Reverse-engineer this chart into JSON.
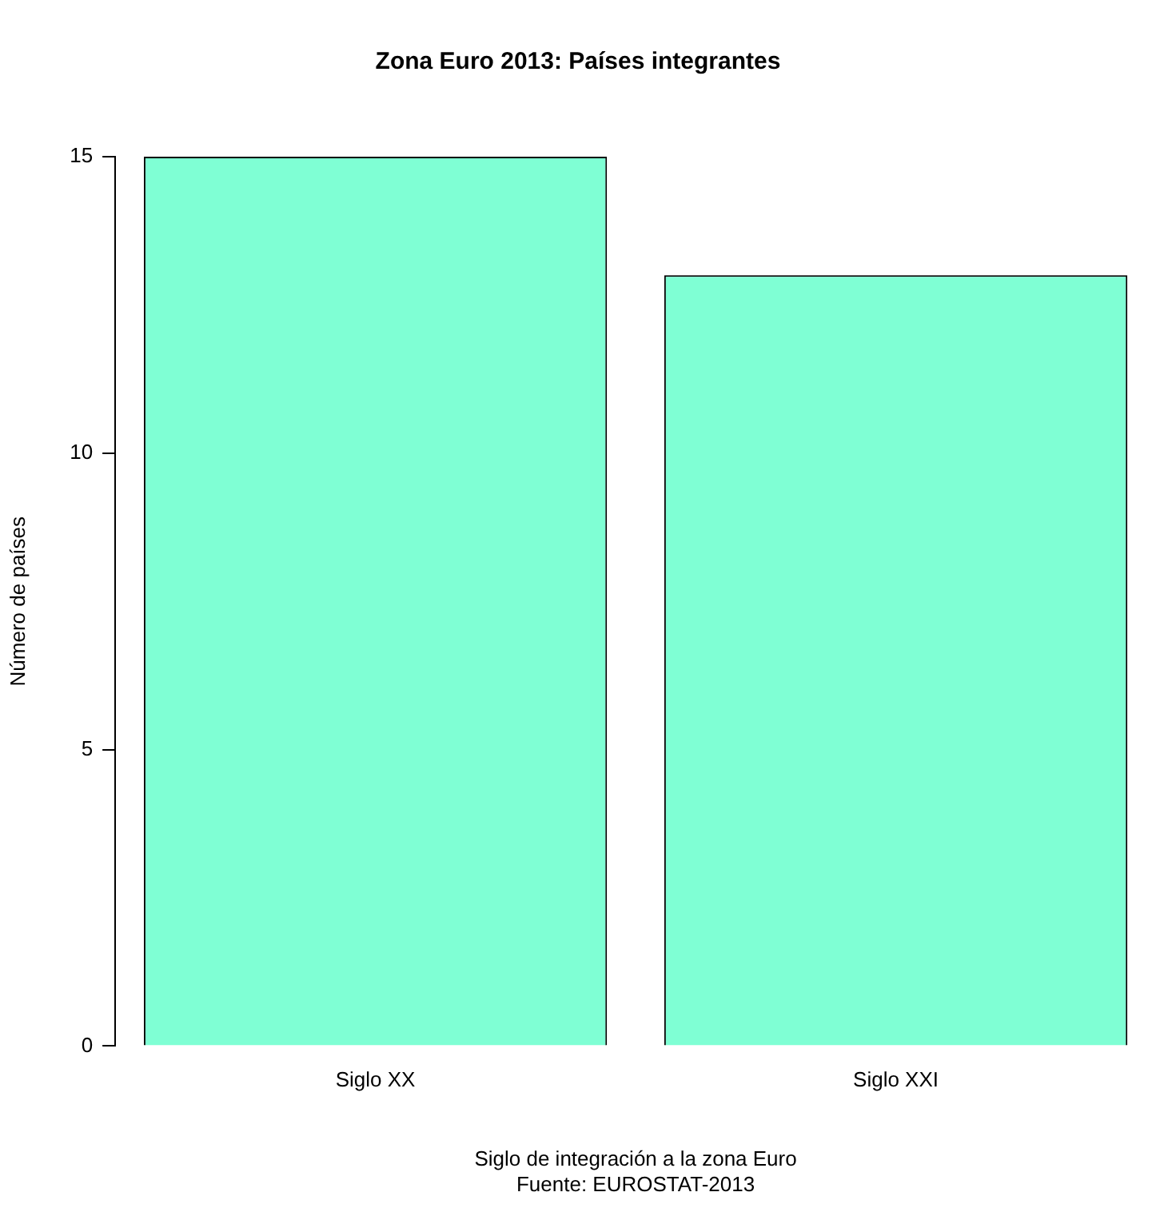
{
  "chart_data": {
    "type": "bar",
    "title": "Zona Euro 2013: Países integrantes",
    "xlabel": "Siglo de integración a la zona Euro",
    "ylabel": "Número de países",
    "annotations": [
      "Fuente: EUROSTAT-2013"
    ],
    "categories": [
      "Siglo XX",
      "Siglo XXI"
    ],
    "values": [
      15,
      13
    ],
    "color": "#7fffd4",
    "ylim": [
      0,
      15
    ],
    "yticks": [
      0,
      5,
      10,
      15
    ],
    "grid": false,
    "legend": false
  }
}
